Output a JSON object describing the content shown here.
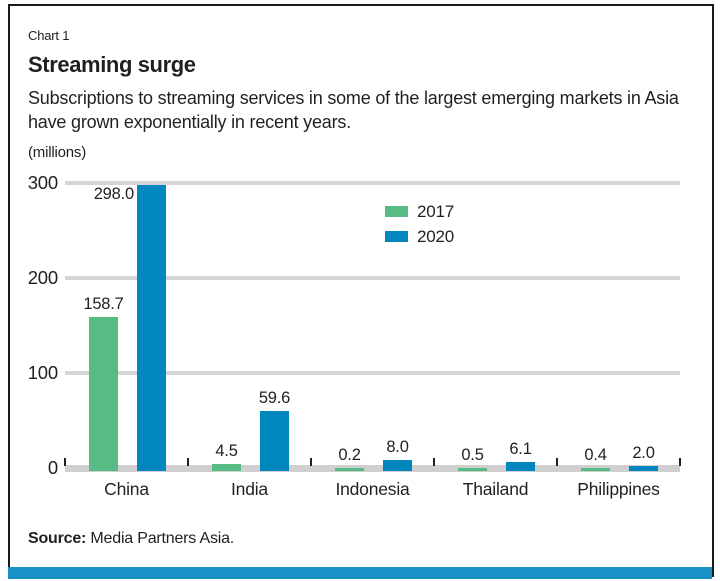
{
  "header": {
    "kicker": "Chart 1",
    "subtitle_lines": [
      "Subscriptions to streaming services in some of the largest emerging markets in Asia",
      "have grown exponentially in recent years."
    ]
  },
  "source": {
    "prefix": "Source:",
    "text": " Media Partners Asia."
  },
  "colors": {
    "series_2017": "#58BA84",
    "series_2020": "#0087BE",
    "gridline": "#D5D5D5",
    "baseline": "#CFCFCF",
    "text": "#231F20",
    "bottom_accent_bar": "#1791C6",
    "frame_border": "#1A1A1A"
  },
  "chart_data": {
    "type": "bar",
    "title": "Streaming surge",
    "ylabel": "(millions)",
    "categories": [
      "China",
      "India",
      "Indonesia",
      "Thailand",
      "Philippines"
    ],
    "series": [
      {
        "name": "2017",
        "color": "#58BA84",
        "values": [
          158.7,
          4.5,
          0.2,
          0.5,
          0.4
        ]
      },
      {
        "name": "2020",
        "color": "#0087BE",
        "values": [
          298.0,
          59.6,
          8.0,
          6.1,
          2.0
        ]
      }
    ],
    "ylim": [
      0,
      300
    ],
    "yticks": [
      0,
      100,
      200,
      300
    ],
    "grid": true,
    "data_labels": true,
    "legend_position": "upper-center"
  }
}
